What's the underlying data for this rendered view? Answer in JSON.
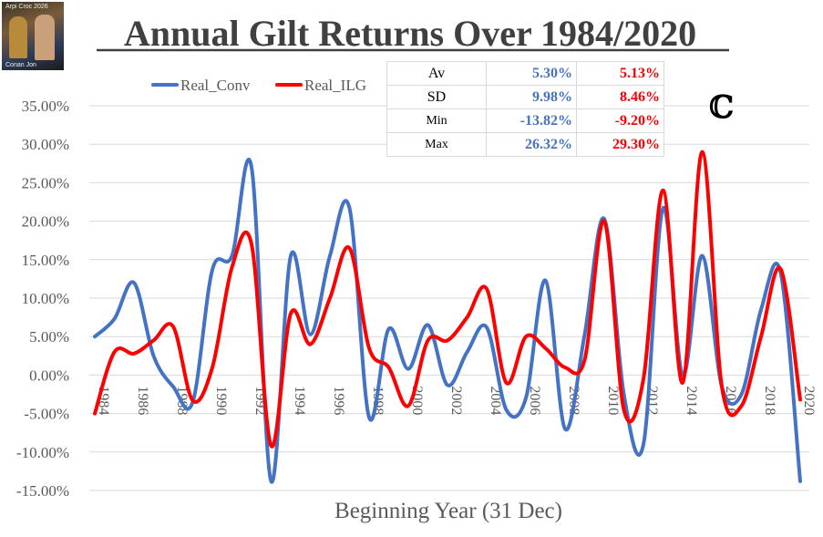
{
  "logo": {
    "caption_top": "Arpi Croc 2026",
    "caption_bottom": "Conan Jon"
  },
  "corner_mark": "ℂ",
  "stats": {
    "rows": [
      {
        "label": "Av",
        "conv": "5.30%",
        "ilg": "5.13%"
      },
      {
        "label": "SD",
        "conv": "9.98%",
        "ilg": "8.46%"
      },
      {
        "label": "Min",
        "conv": "-13.82%",
        "ilg": "-9.20%"
      },
      {
        "label": "Max",
        "conv": "26.32%",
        "ilg": "29.30%"
      }
    ]
  },
  "chart_data": {
    "type": "line",
    "title": "Annual Gilt Returns Over 1984/2020",
    "xlabel": "Beginning Year (31 Dec)",
    "ylabel": "",
    "ylim": [
      -15,
      35
    ],
    "yticks": [
      35,
      30,
      25,
      20,
      15,
      10,
      5,
      0,
      -5,
      -10,
      -15
    ],
    "ytick_labels": [
      "35.00%",
      "30.00%",
      "25.00%",
      "20.00%",
      "15.00%",
      "10.00%",
      "5.00%",
      "0.00%",
      "-5.00%",
      "-10.00%",
      "-15.00%"
    ],
    "xtick_labels": [
      "1984",
      "1986",
      "1988",
      "1990",
      "1992",
      "1994",
      "1996",
      "1998",
      "2000",
      "2002",
      "2004",
      "2006",
      "2008",
      "2010",
      "2012",
      "2014",
      "2016",
      "2018",
      "2020"
    ],
    "x": [
      1984,
      1985,
      1986,
      1987,
      1988,
      1989,
      1990,
      1991,
      1992,
      1993,
      1994,
      1995,
      1996,
      1997,
      1998,
      1999,
      2000,
      2001,
      2002,
      2003,
      2004,
      2005,
      2006,
      2007,
      2008,
      2009,
      2010,
      2011,
      2012,
      2013,
      2014,
      2015,
      2016,
      2017,
      2018,
      2019,
      2020
    ],
    "legend": "top-left",
    "grid": true,
    "series": [
      {
        "name": "Real_Conv",
        "color": "#4472c4",
        "values": [
          5.0,
          7.3,
          12.0,
          2.5,
          -1.5,
          -3.5,
          13.7,
          15.5,
          27.0,
          -13.8,
          15.5,
          5.3,
          15.5,
          21.7,
          -5.5,
          6.0,
          0.8,
          6.5,
          -1.3,
          3.0,
          6.2,
          -4.5,
          -3.0,
          12.3,
          -7.0,
          5.3,
          20.3,
          -2.5,
          -9.0,
          21.7,
          0.0,
          15.5,
          -1.5,
          -2.5,
          8.5,
          13.3,
          -13.8
        ]
      },
      {
        "name": "Real_ILG",
        "color": "#ff0000",
        "values": [
          -5.0,
          3.0,
          2.8,
          4.5,
          6.3,
          -3.3,
          1.0,
          14.0,
          17.0,
          -9.2,
          8.0,
          4.0,
          10.0,
          16.5,
          3.5,
          1.0,
          -4.0,
          4.5,
          4.5,
          7.5,
          11.2,
          -1.0,
          5.0,
          3.5,
          1.0,
          2.0,
          20.0,
          -4.5,
          -0.5,
          24.0,
          -1.0,
          29.0,
          -1.5,
          -4.0,
          5.0,
          13.8,
          -3.2
        ]
      }
    ]
  }
}
